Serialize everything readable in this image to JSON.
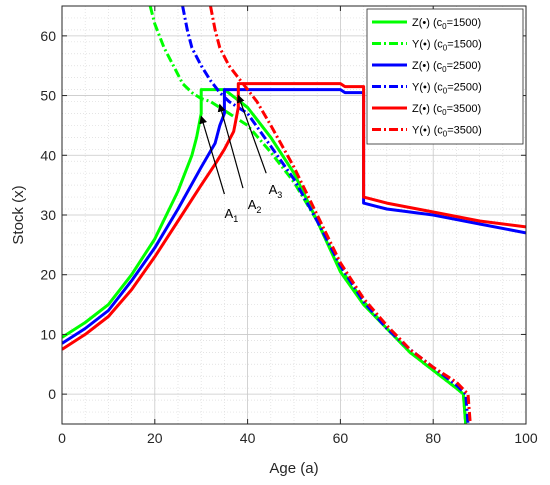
{
  "chart_data": {
    "type": "line",
    "title": "",
    "xlabel": "Age (a)",
    "ylabel": "Stock (x)",
    "xlim": [
      0,
      100
    ],
    "ylim": [
      -5,
      65
    ],
    "xticks": [
      0,
      20,
      40,
      60,
      80,
      100
    ],
    "yticks": [
      0,
      10,
      20,
      30,
      40,
      50,
      60
    ],
    "grid": "major and minor (dotted)",
    "legend_position": "top-right",
    "series": [
      {
        "name": "Z(•) (c",
        "sub": "0",
        "suffix": "=1500)",
        "color": "#00ff00",
        "dash": "solid",
        "points": [
          [
            0,
            9.5
          ],
          [
            5,
            12
          ],
          [
            10,
            15
          ],
          [
            15,
            20
          ],
          [
            20,
            26
          ],
          [
            25,
            34
          ],
          [
            28,
            40
          ],
          [
            29,
            43
          ],
          [
            30,
            47
          ],
          [
            30,
            51
          ],
          [
            35,
            51
          ],
          [
            40,
            48
          ],
          [
            45,
            43
          ],
          [
            50,
            37
          ],
          [
            55,
            29
          ],
          [
            60,
            20.5
          ],
          [
            65,
            15
          ],
          [
            70,
            11
          ],
          [
            75,
            7
          ],
          [
            80,
            4
          ],
          [
            85,
            1
          ],
          [
            86.5,
            0
          ],
          [
            87,
            -5
          ]
        ]
      },
      {
        "name": "Y(•) (c",
        "sub": "0",
        "suffix": "=1500)",
        "color": "#00ff00",
        "dash": "dash-dot",
        "points": [
          [
            19,
            65
          ],
          [
            20,
            62
          ],
          [
            22,
            58
          ],
          [
            24,
            55
          ],
          [
            26,
            52
          ],
          [
            28,
            50.5
          ],
          [
            30,
            49.5
          ],
          [
            32,
            49
          ],
          [
            35,
            47.5
          ],
          [
            40,
            45
          ],
          [
            45,
            40.5
          ],
          [
            50,
            35.5
          ],
          [
            55,
            29
          ],
          [
            60,
            21
          ],
          [
            65,
            15.5
          ],
          [
            70,
            11
          ],
          [
            75,
            7
          ],
          [
            80,
            4
          ],
          [
            85,
            1
          ],
          [
            86.5,
            0
          ],
          [
            87,
            -5
          ]
        ]
      },
      {
        "name": "Z(•) (c",
        "sub": "0",
        "suffix": "=2500)",
        "color": "#0000ff",
        "dash": "solid",
        "points": [
          [
            0,
            8.5
          ],
          [
            5,
            11
          ],
          [
            10,
            14
          ],
          [
            15,
            19
          ],
          [
            20,
            24.5
          ],
          [
            25,
            31
          ],
          [
            30,
            38
          ],
          [
            33,
            42
          ],
          [
            34,
            45
          ],
          [
            35,
            47
          ],
          [
            35,
            51
          ],
          [
            60,
            51
          ],
          [
            61,
            50.5
          ],
          [
            65,
            50.5
          ],
          [
            65,
            32
          ],
          [
            70,
            31
          ],
          [
            80,
            30
          ],
          [
            90,
            28.5
          ],
          [
            100,
            27
          ]
        ]
      },
      {
        "name": "Y(•) (c",
        "sub": "0",
        "suffix": "=2500)",
        "color": "#0000ff",
        "dash": "dash-dot",
        "points": [
          [
            26,
            65
          ],
          [
            27,
            61
          ],
          [
            28,
            58
          ],
          [
            30,
            55
          ],
          [
            32,
            52.5
          ],
          [
            34,
            50.5
          ],
          [
            36,
            49
          ],
          [
            40,
            47
          ],
          [
            45,
            41.5
          ],
          [
            50,
            36
          ],
          [
            55,
            29
          ],
          [
            60,
            21.5
          ],
          [
            65,
            15.5
          ],
          [
            70,
            11
          ],
          [
            75,
            7.5
          ],
          [
            80,
            4.5
          ],
          [
            85,
            1.5
          ],
          [
            87,
            0
          ],
          [
            87.5,
            -5
          ]
        ]
      },
      {
        "name": "Z(•) (c",
        "sub": "0",
        "suffix": "=3500)",
        "color": "#ff0000",
        "dash": "solid",
        "points": [
          [
            0,
            7.5
          ],
          [
            5,
            10
          ],
          [
            10,
            13
          ],
          [
            15,
            17.5
          ],
          [
            20,
            23
          ],
          [
            25,
            29
          ],
          [
            30,
            35
          ],
          [
            33,
            38.5
          ],
          [
            35,
            41
          ],
          [
            37,
            44
          ],
          [
            38,
            48
          ],
          [
            38,
            52
          ],
          [
            60,
            52
          ],
          [
            61,
            51.5
          ],
          [
            65,
            51.5
          ],
          [
            65,
            33
          ],
          [
            70,
            32
          ],
          [
            80,
            30.5
          ],
          [
            90,
            29
          ],
          [
            100,
            28
          ]
        ]
      },
      {
        "name": "Y(•) (c",
        "sub": "0",
        "suffix": "=3500)",
        "color": "#ff0000",
        "dash": "dash-dot",
        "points": [
          [
            32,
            65
          ],
          [
            33,
            61
          ],
          [
            34,
            58
          ],
          [
            36,
            55
          ],
          [
            38,
            53
          ],
          [
            40,
            51
          ],
          [
            42,
            49
          ],
          [
            45,
            45
          ],
          [
            50,
            38
          ],
          [
            55,
            30
          ],
          [
            60,
            22
          ],
          [
            65,
            16
          ],
          [
            70,
            11.5
          ],
          [
            75,
            7.5
          ],
          [
            80,
            4.5
          ],
          [
            85,
            2
          ],
          [
            87.5,
            0
          ],
          [
            88,
            -5
          ]
        ]
      }
    ],
    "annotations": [
      {
        "label": "A",
        "sub": "1",
        "text_at": [
          36.5,
          29.5
        ],
        "arrow_from": [
          35,
          33.5
        ],
        "arrow_to": [
          30,
          46.5
        ]
      },
      {
        "label": "A",
        "sub": "2",
        "text_at": [
          41.5,
          31
        ],
        "arrow_from": [
          39,
          34.5
        ],
        "arrow_to": [
          34,
          48.5
        ]
      },
      {
        "label": "A",
        "sub": "3",
        "text_at": [
          46,
          33.5
        ],
        "arrow_from": [
          44,
          37
        ],
        "arrow_to": [
          38,
          50
        ]
      }
    ]
  }
}
